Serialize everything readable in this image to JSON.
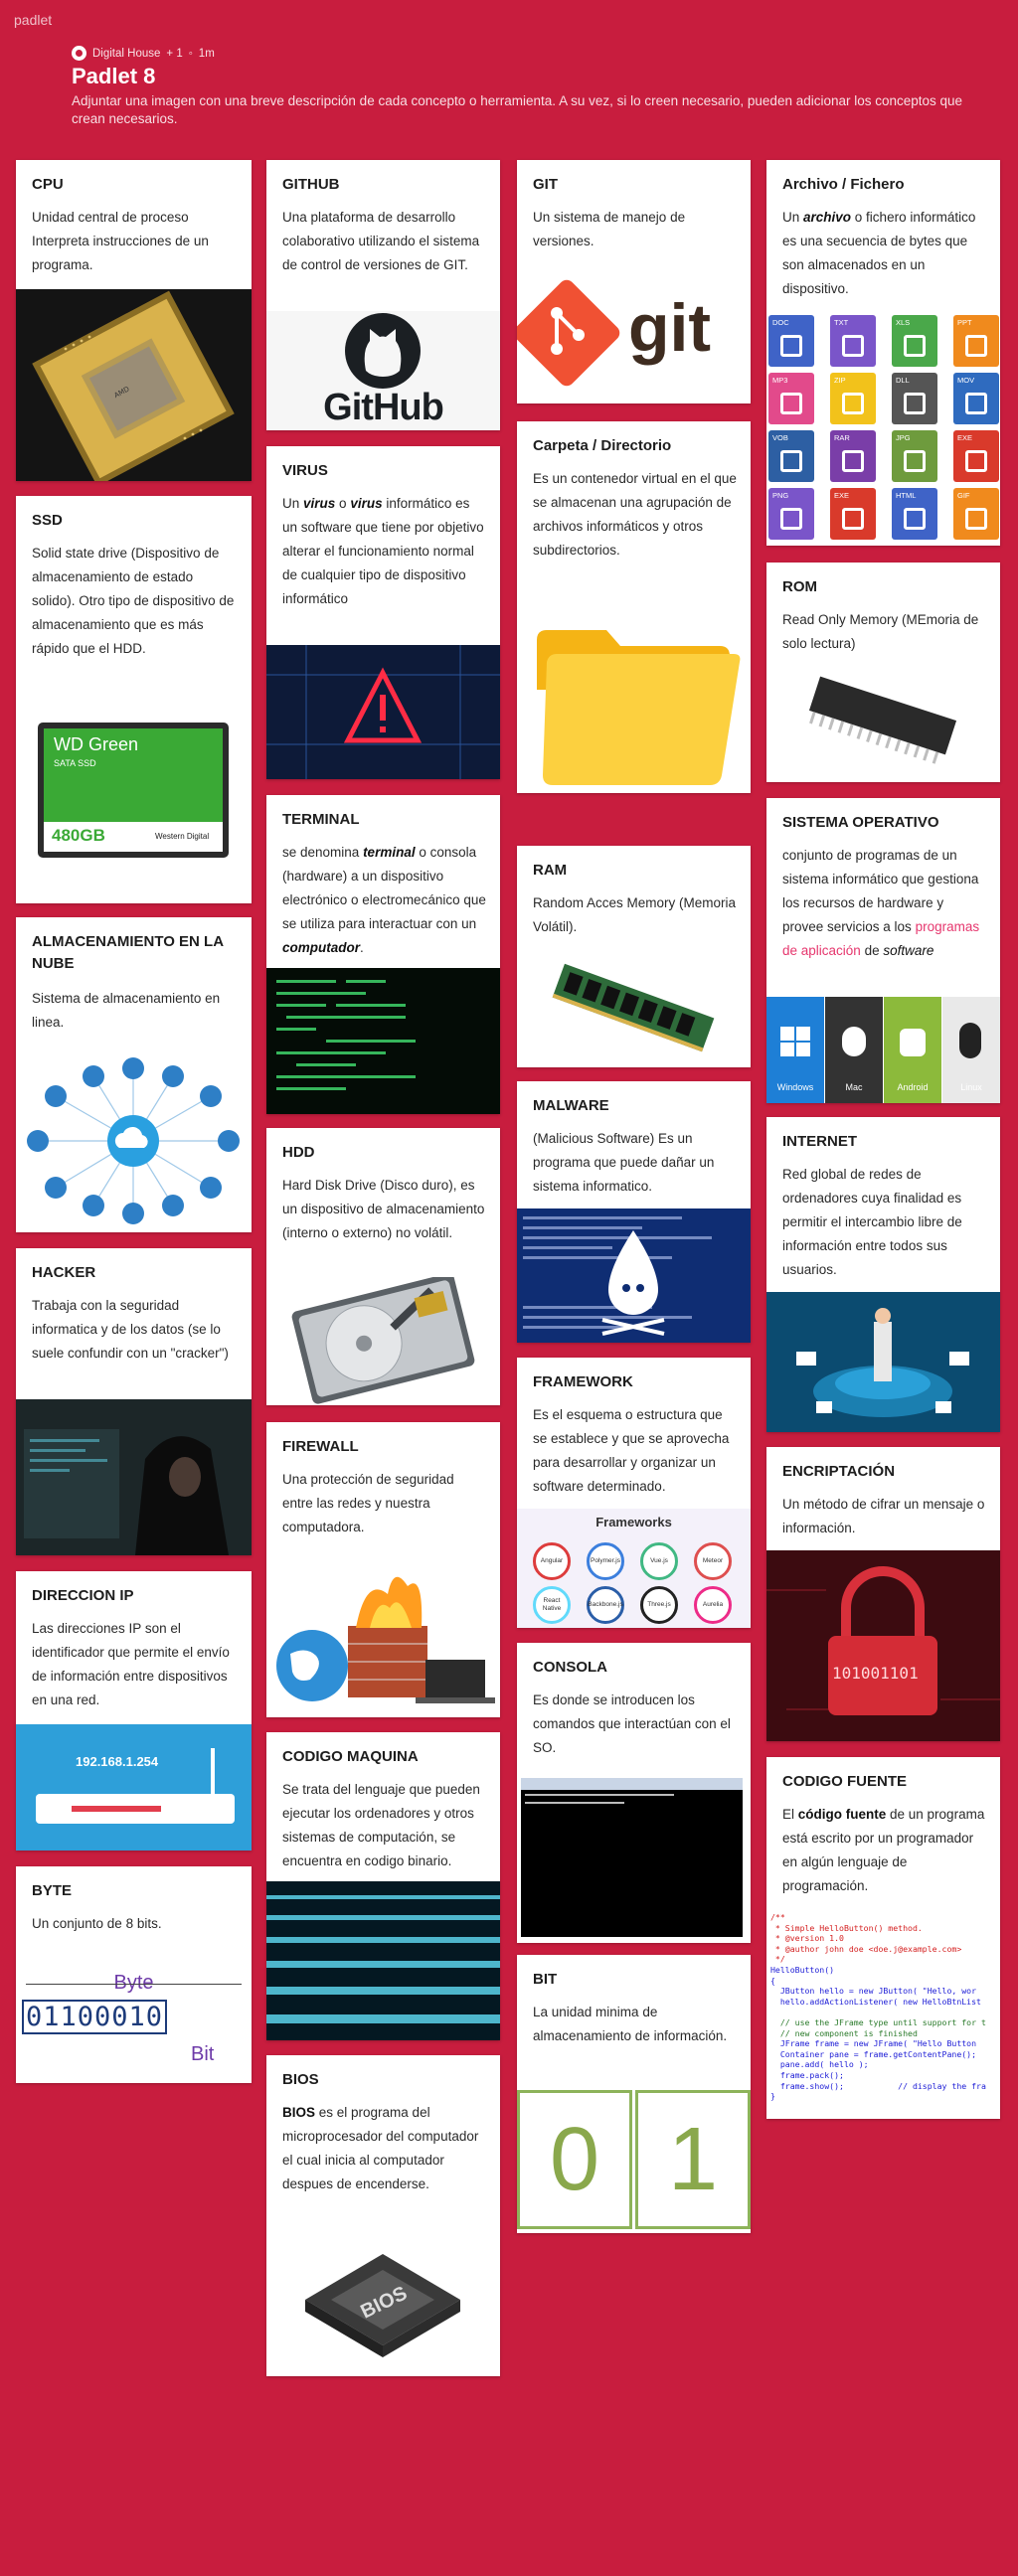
{
  "header": {
    "brand": "padlet",
    "author": "Digital House",
    "likes": "+ 1",
    "time": "1m",
    "title": "Padlet 8",
    "description": "Adjuntar una imagen con una breve descripción de cada concepto o herramienta. A su vez, si lo creen necesario, pueden adicionar los conceptos que crean necesarios."
  },
  "cards": {
    "cpu": {
      "title": "CPU",
      "body": "Unidad central de proceso Interpreta instrucciones de un programa."
    },
    "ssd": {
      "title": "SSD",
      "body": "Solid state drive (Dispositivo de almacenamiento de estado solido). Otro tipo de dispositivo de almacenamiento que es más rápido que el HDD.",
      "img_brand": "WD Green",
      "img_sub": "SATA SSD",
      "img_cap": "480GB",
      "img_maker": "Western Digital"
    },
    "nube": {
      "title": "ALMACENAMIENTO EN LA NUBE",
      "body": "Sistema de almacenamiento en linea."
    },
    "hacker": {
      "title": "HACKER",
      "body": "Trabaja con la seguridad informatica y de los datos (se lo suele confundir con un \"cracker\")"
    },
    "ip": {
      "title": "DIRECCION IP",
      "body": "Las direcciones IP son el identificador que permite el envío de información entre dispositivos en una red.",
      "img_ip": "192.168.1.254"
    },
    "byte": {
      "title": "BYTE",
      "body": "Un conjunto de 8 bits.",
      "img_byte": "Byte",
      "img_bit": "Bit",
      "img_digits": "01100010"
    },
    "github": {
      "title": "GITHUB",
      "body": "Una plataforma de desarrollo colaborativo utilizando el sistema de control de versiones de GIT.",
      "img_text": "GitHub"
    },
    "virus": {
      "title": "VIRUS",
      "body_pre": "Un ",
      "body_b1": "virus",
      "body_mid": " o ",
      "body_b2": "virus",
      "body_post": " informático es un software que tiene por objetivo alterar el funcionamiento normal de cualquier tipo de dispositivo informático"
    },
    "terminal": {
      "title": "TERMINAL",
      "body_pre": "se denomina ",
      "body_b": "terminal",
      "body_mid": " o consola (hardware) a un dispositivo electrónico o electromecánico que se utiliza para interactuar con un ",
      "body_b2": "computador",
      "body_post": "."
    },
    "hdd": {
      "title": "HDD",
      "body": "Hard Disk Drive (Disco duro), es un dispositivo de almacenamiento (interno o externo) no volátil."
    },
    "firewall": {
      "title": "FIREWALL",
      "body": "Una protección de seguridad entre las redes y nuestra computadora."
    },
    "codigo_maquina": {
      "title": "CODIGO MAQUINA",
      "body": "Se trata del lenguaje que pueden ejecutar los ordenadores y otros sistemas de computación, se encuentra en codigo binario."
    },
    "bios": {
      "title": "BIOS",
      "body_b": "BIOS",
      "body_post": " es el programa del microprocesador del computador el cual inicia al computador despues de encenderse.",
      "img_text": "BIOS"
    },
    "git": {
      "title": "GIT",
      "body": "Un sistema de manejo de versiones.",
      "img_text": "git"
    },
    "carpeta": {
      "title": "Carpeta / Directorio",
      "body": "Es un contenedor virtual en el que se almacenan una agrupación de archivos informáticos y otros subdirectorios."
    },
    "ram": {
      "title": "RAM",
      "body": "Random Acces Memory (Memoria Volátil)."
    },
    "malware": {
      "title": "MALWARE",
      "body": "(Malicious Software) Es un programa que puede dañar un sistema informatico."
    },
    "framework": {
      "title": "FRAMEWORK",
      "body": "Es el esquema o estructura que se establece y que se aprovecha para desarrollar y organizar un software determinado.",
      "img_title": "Frameworks",
      "img_items": [
        "Angular",
        "Polymer.js",
        "Vue.js",
        "Meteor",
        "React Native",
        "Backbone.js",
        "Three.js",
        "Aurelia"
      ]
    },
    "consola": {
      "title": "CONSOLA",
      "body": "Es donde se introducen los comandos que interactúan con el SO."
    },
    "bit": {
      "title": "BIT",
      "body": "La unidad minima de almacenamiento de información.",
      "img_zero": "0",
      "img_one": "1"
    },
    "archivo": {
      "title": "Archivo / Fichero",
      "body_pre": "Un ",
      "body_b": "archivo",
      "body_post": " o fichero informático es una secuencia de bytes que son almacenados en un dispositivo.",
      "img_types": [
        "DOC",
        "TXT",
        "XLS",
        "PPT",
        "MP3",
        "ZIP",
        "DLL",
        "MOV",
        "VOB",
        "RAR",
        "JPG",
        "EXE",
        "PNG",
        "EXE",
        "HTML",
        "GIF"
      ]
    },
    "rom": {
      "title": "ROM",
      "body": "Read Only Memory (MEmoria de solo lectura)"
    },
    "so": {
      "title": "SISTEMA OPERATIVO",
      "body_pre": " conjunto de programas de un sistema informático que gestiona los recursos de hardware y provee servicios a los ",
      "body_link": "programas de aplicación",
      "body_mid": " de ",
      "body_i": "software",
      "img_labels": [
        "Windows",
        "Mac",
        "Android",
        "Linux"
      ]
    },
    "internet": {
      "title": "INTERNET",
      "body": "Red global de redes de ordenadores cuya finalidad es permitir el intercambio libre de información entre todos sus usuarios."
    },
    "encriptacion": {
      "title": "ENCRIPTACIÓN",
      "body": "Un método de cifrar un mensaje o información.",
      "img_text": "101001101"
    },
    "codigo_fuente": {
      "title": "CODIGO FUENTE",
      "body_pre": "El ",
      "body_b": "código fuente",
      "body_post": " de un programa está escrito por un programador en algún lenguaje de programación.",
      "code_lines": [
        "/**",
        " * Simple HelloButton() method.",
        " * @version 1.0",
        " * @author john doe <doe.j@example.com>",
        " */",
        "HelloButton()",
        "{",
        "  JButton hello = new JButton( \"Hello, wor",
        "  hello.addActionListener( new HelloBtnList",
        "",
        "  // use the JFrame type until support for t",
        "  // new component is finished",
        "  JFrame frame = new JFrame( \"Hello Button",
        "  Container pane = frame.getContentPane();",
        "  pane.add( hello );",
        "  frame.pack();",
        "  frame.show();           // display the fra",
        "}"
      ]
    }
  },
  "colors": {
    "background": "#c81d3e",
    "card": "#ffffff",
    "link": "#e6376e"
  }
}
